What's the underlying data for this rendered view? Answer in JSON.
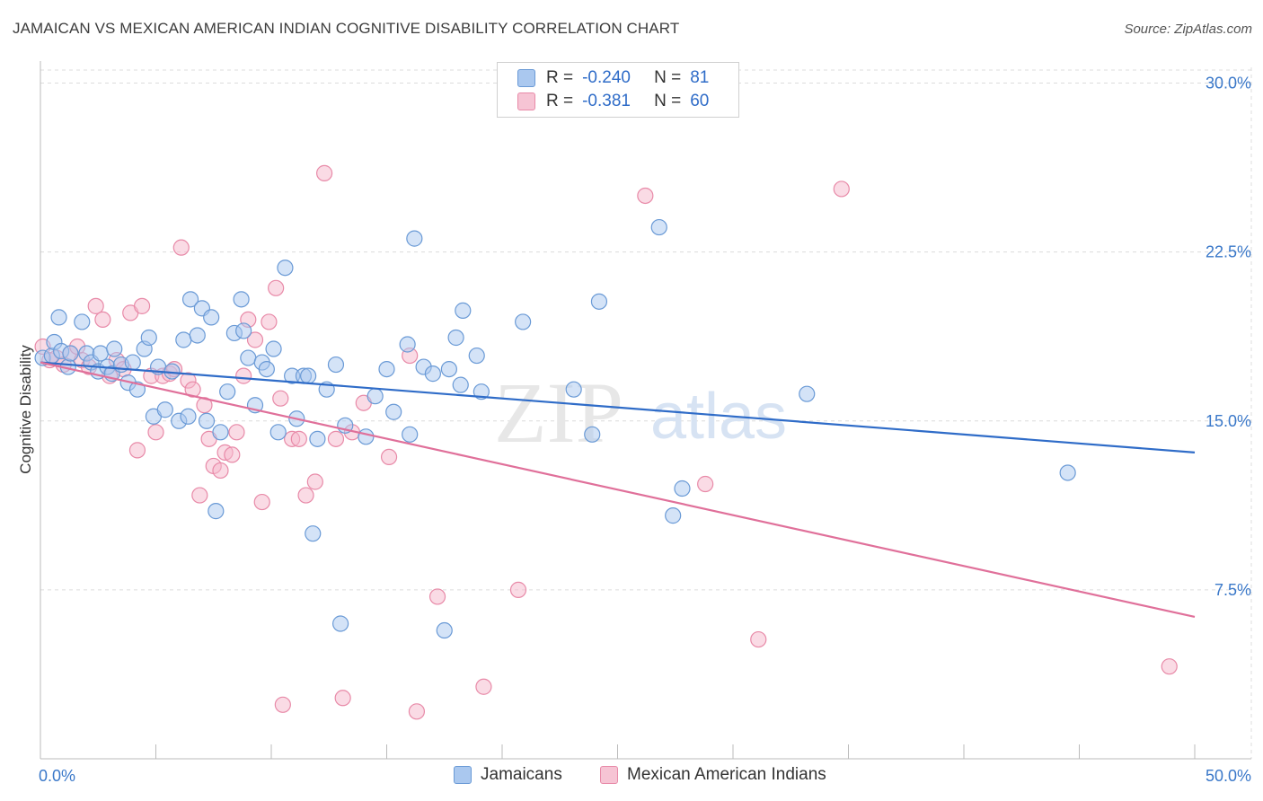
{
  "title": "JAMAICAN VS MEXICAN AMERICAN INDIAN COGNITIVE DISABILITY CORRELATION CHART",
  "source": "Source: ZipAtlas.com",
  "watermark": {
    "zip": "ZIP",
    "atlas": "atlas"
  },
  "legend_top": [
    {
      "r_label": "R =",
      "r_value": "-0.240",
      "n_label": "N =",
      "n_value": "81"
    },
    {
      "r_label": "R =",
      "r_value": "-0.381",
      "n_label": "N =",
      "n_value": "60"
    }
  ],
  "legend_bottom": [
    {
      "label": "Jamaicans"
    },
    {
      "label": "Mexican American Indians"
    }
  ],
  "colors": {
    "blue_fill": "#aac8ef",
    "blue_stroke": "#6a9ad6",
    "blue_line": "#2f6cc8",
    "pink_fill": "#f6b8cb",
    "pink_stroke": "#e88aa8",
    "pink_line": "#e0709a",
    "tick_text": "#3a78c9",
    "grid": "#dcdcdc"
  },
  "chart_data": {
    "type": "scatter",
    "title": "JAMAICAN VS MEXICAN AMERICAN INDIAN COGNITIVE DISABILITY CORRELATION CHART",
    "xlabel": "",
    "ylabel": "Cognitive Disability",
    "xlim": [
      0,
      50
    ],
    "ylim": [
      0,
      30.7
    ],
    "x_tick_labels": [
      "0.0%",
      "50.0%"
    ],
    "y_ticks": [
      7.5,
      15.0,
      22.5,
      30.0
    ],
    "y_tick_labels": [
      "7.5%",
      "15.0%",
      "22.5%",
      "30.0%"
    ],
    "series": [
      {
        "name": "Jamaicans",
        "color": "blue",
        "r": -0.24,
        "n": 81,
        "trend": {
          "x": [
            0,
            50
          ],
          "y": [
            17.6,
            13.6
          ]
        },
        "points": [
          [
            0.1,
            17.8
          ],
          [
            0.5,
            17.9
          ],
          [
            0.6,
            18.5
          ],
          [
            0.8,
            19.6
          ],
          [
            0.9,
            18.1
          ],
          [
            1.2,
            17.4
          ],
          [
            1.3,
            18.0
          ],
          [
            1.8,
            19.4
          ],
          [
            2.0,
            18.0
          ],
          [
            2.2,
            17.6
          ],
          [
            2.5,
            17.2
          ],
          [
            2.6,
            18.0
          ],
          [
            2.9,
            17.4
          ],
          [
            3.1,
            17.1
          ],
          [
            3.2,
            18.2
          ],
          [
            3.5,
            17.5
          ],
          [
            3.8,
            16.7
          ],
          [
            4.0,
            17.6
          ],
          [
            4.2,
            16.4
          ],
          [
            4.5,
            18.2
          ],
          [
            4.7,
            18.7
          ],
          [
            4.9,
            15.2
          ],
          [
            5.1,
            17.4
          ],
          [
            5.4,
            15.5
          ],
          [
            5.7,
            17.2
          ],
          [
            6.0,
            15.0
          ],
          [
            6.2,
            18.6
          ],
          [
            6.4,
            15.2
          ],
          [
            6.5,
            20.4
          ],
          [
            6.8,
            18.8
          ],
          [
            7.0,
            20.0
          ],
          [
            7.2,
            15.0
          ],
          [
            7.4,
            19.6
          ],
          [
            7.6,
            11.0
          ],
          [
            7.8,
            14.5
          ],
          [
            8.1,
            16.3
          ],
          [
            8.4,
            18.9
          ],
          [
            8.7,
            20.4
          ],
          [
            9.0,
            17.8
          ],
          [
            9.3,
            15.7
          ],
          [
            9.6,
            17.6
          ],
          [
            9.8,
            17.3
          ],
          [
            10.1,
            18.2
          ],
          [
            10.3,
            14.5
          ],
          [
            10.6,
            21.8
          ],
          [
            10.9,
            17.0
          ],
          [
            11.1,
            15.1
          ],
          [
            11.4,
            17.0
          ],
          [
            11.6,
            17.0
          ],
          [
            11.8,
            10.0
          ],
          [
            12.0,
            14.2
          ],
          [
            12.4,
            16.4
          ],
          [
            12.8,
            17.5
          ],
          [
            13.2,
            14.8
          ],
          [
            14.1,
            14.3
          ],
          [
            14.5,
            16.1
          ],
          [
            15.0,
            17.3
          ],
          [
            15.3,
            15.4
          ],
          [
            16.0,
            14.4
          ],
          [
            16.6,
            17.4
          ],
          [
            17.0,
            17.1
          ],
          [
            17.5,
            5.7
          ],
          [
            17.7,
            17.3
          ],
          [
            18.0,
            18.7
          ],
          [
            18.2,
            16.6
          ],
          [
            18.9,
            17.9
          ],
          [
            19.1,
            16.3
          ],
          [
            20.9,
            19.4
          ],
          [
            23.1,
            16.4
          ],
          [
            23.9,
            14.4
          ],
          [
            24.2,
            20.3
          ],
          [
            26.8,
            23.6
          ],
          [
            27.4,
            10.8
          ],
          [
            27.8,
            12.0
          ],
          [
            33.2,
            16.2
          ],
          [
            44.5,
            12.7
          ],
          [
            16.2,
            23.1
          ],
          [
            13.0,
            6.0
          ],
          [
            8.8,
            19.0
          ],
          [
            15.9,
            18.4
          ],
          [
            18.3,
            19.9
          ]
        ]
      },
      {
        "name": "Mexican American Indians",
        "color": "pink",
        "r": -0.381,
        "n": 60,
        "trend": {
          "x": [
            0,
            50
          ],
          "y": [
            17.6,
            6.3
          ]
        },
        "points": [
          [
            0.1,
            18.3
          ],
          [
            0.4,
            17.7
          ],
          [
            0.7,
            17.8
          ],
          [
            1.0,
            17.5
          ],
          [
            1.3,
            18.0
          ],
          [
            1.6,
            18.3
          ],
          [
            1.8,
            17.7
          ],
          [
            2.1,
            17.4
          ],
          [
            2.4,
            20.1
          ],
          [
            2.7,
            19.5
          ],
          [
            3.0,
            17.0
          ],
          [
            3.3,
            17.7
          ],
          [
            3.6,
            17.3
          ],
          [
            3.9,
            19.8
          ],
          [
            4.2,
            13.7
          ],
          [
            4.4,
            20.1
          ],
          [
            4.8,
            17.0
          ],
          [
            5.0,
            14.5
          ],
          [
            5.3,
            17.0
          ],
          [
            5.6,
            17.1
          ],
          [
            5.8,
            17.3
          ],
          [
            6.1,
            22.7
          ],
          [
            6.4,
            16.8
          ],
          [
            6.6,
            16.4
          ],
          [
            6.9,
            11.7
          ],
          [
            7.1,
            15.7
          ],
          [
            7.3,
            14.2
          ],
          [
            7.5,
            13.0
          ],
          [
            7.8,
            12.8
          ],
          [
            8.0,
            13.6
          ],
          [
            8.3,
            13.5
          ],
          [
            8.8,
            17.0
          ],
          [
            9.0,
            19.5
          ],
          [
            9.3,
            18.6
          ],
          [
            9.6,
            11.4
          ],
          [
            9.9,
            19.4
          ],
          [
            10.2,
            20.9
          ],
          [
            10.4,
            16.0
          ],
          [
            10.9,
            14.2
          ],
          [
            11.2,
            14.2
          ],
          [
            11.5,
            11.7
          ],
          [
            11.9,
            12.3
          ],
          [
            12.3,
            26.0
          ],
          [
            12.8,
            14.2
          ],
          [
            13.1,
            2.7
          ],
          [
            13.5,
            14.5
          ],
          [
            14.0,
            15.8
          ],
          [
            15.1,
            13.4
          ],
          [
            16.0,
            17.9
          ],
          [
            16.3,
            2.1
          ],
          [
            17.2,
            7.2
          ],
          [
            19.2,
            3.2
          ],
          [
            20.7,
            7.5
          ],
          [
            26.2,
            25.0
          ],
          [
            31.1,
            5.3
          ],
          [
            34.7,
            25.3
          ],
          [
            48.9,
            4.1
          ],
          [
            28.8,
            12.2
          ],
          [
            10.5,
            2.4
          ],
          [
            8.5,
            14.5
          ]
        ]
      }
    ]
  }
}
